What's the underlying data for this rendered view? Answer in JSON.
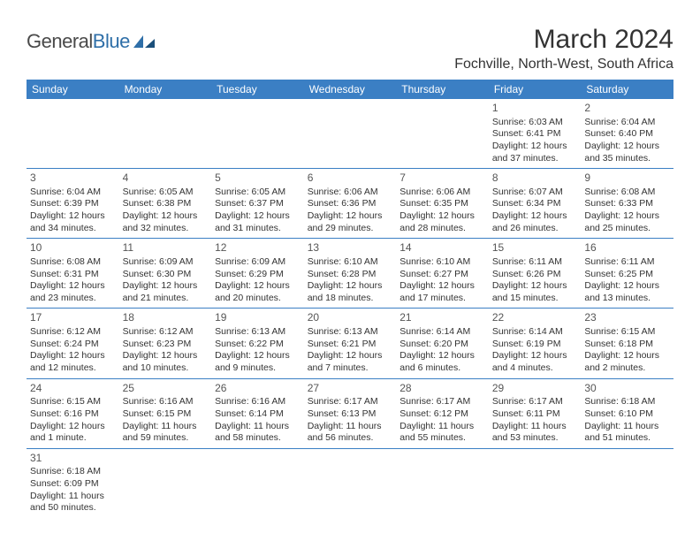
{
  "brand": {
    "part1": "General",
    "part2": "Blue"
  },
  "title": "March 2024",
  "location": "Fochville, North-West, South Africa",
  "colors": {
    "header_bg": "#3b7fc4",
    "header_fg": "#ffffff",
    "rule": "#3b7fc4"
  },
  "weekdays": [
    "Sunday",
    "Monday",
    "Tuesday",
    "Wednesday",
    "Thursday",
    "Friday",
    "Saturday"
  ],
  "weeks": [
    [
      null,
      null,
      null,
      null,
      null,
      {
        "n": "1",
        "sr": "Sunrise: 6:03 AM",
        "ss": "Sunset: 6:41 PM",
        "d1": "Daylight: 12 hours",
        "d2": "and 37 minutes."
      },
      {
        "n": "2",
        "sr": "Sunrise: 6:04 AM",
        "ss": "Sunset: 6:40 PM",
        "d1": "Daylight: 12 hours",
        "d2": "and 35 minutes."
      }
    ],
    [
      {
        "n": "3",
        "sr": "Sunrise: 6:04 AM",
        "ss": "Sunset: 6:39 PM",
        "d1": "Daylight: 12 hours",
        "d2": "and 34 minutes."
      },
      {
        "n": "4",
        "sr": "Sunrise: 6:05 AM",
        "ss": "Sunset: 6:38 PM",
        "d1": "Daylight: 12 hours",
        "d2": "and 32 minutes."
      },
      {
        "n": "5",
        "sr": "Sunrise: 6:05 AM",
        "ss": "Sunset: 6:37 PM",
        "d1": "Daylight: 12 hours",
        "d2": "and 31 minutes."
      },
      {
        "n": "6",
        "sr": "Sunrise: 6:06 AM",
        "ss": "Sunset: 6:36 PM",
        "d1": "Daylight: 12 hours",
        "d2": "and 29 minutes."
      },
      {
        "n": "7",
        "sr": "Sunrise: 6:06 AM",
        "ss": "Sunset: 6:35 PM",
        "d1": "Daylight: 12 hours",
        "d2": "and 28 minutes."
      },
      {
        "n": "8",
        "sr": "Sunrise: 6:07 AM",
        "ss": "Sunset: 6:34 PM",
        "d1": "Daylight: 12 hours",
        "d2": "and 26 minutes."
      },
      {
        "n": "9",
        "sr": "Sunrise: 6:08 AM",
        "ss": "Sunset: 6:33 PM",
        "d1": "Daylight: 12 hours",
        "d2": "and 25 minutes."
      }
    ],
    [
      {
        "n": "10",
        "sr": "Sunrise: 6:08 AM",
        "ss": "Sunset: 6:31 PM",
        "d1": "Daylight: 12 hours",
        "d2": "and 23 minutes."
      },
      {
        "n": "11",
        "sr": "Sunrise: 6:09 AM",
        "ss": "Sunset: 6:30 PM",
        "d1": "Daylight: 12 hours",
        "d2": "and 21 minutes."
      },
      {
        "n": "12",
        "sr": "Sunrise: 6:09 AM",
        "ss": "Sunset: 6:29 PM",
        "d1": "Daylight: 12 hours",
        "d2": "and 20 minutes."
      },
      {
        "n": "13",
        "sr": "Sunrise: 6:10 AM",
        "ss": "Sunset: 6:28 PM",
        "d1": "Daylight: 12 hours",
        "d2": "and 18 minutes."
      },
      {
        "n": "14",
        "sr": "Sunrise: 6:10 AM",
        "ss": "Sunset: 6:27 PM",
        "d1": "Daylight: 12 hours",
        "d2": "and 17 minutes."
      },
      {
        "n": "15",
        "sr": "Sunrise: 6:11 AM",
        "ss": "Sunset: 6:26 PM",
        "d1": "Daylight: 12 hours",
        "d2": "and 15 minutes."
      },
      {
        "n": "16",
        "sr": "Sunrise: 6:11 AM",
        "ss": "Sunset: 6:25 PM",
        "d1": "Daylight: 12 hours",
        "d2": "and 13 minutes."
      }
    ],
    [
      {
        "n": "17",
        "sr": "Sunrise: 6:12 AM",
        "ss": "Sunset: 6:24 PM",
        "d1": "Daylight: 12 hours",
        "d2": "and 12 minutes."
      },
      {
        "n": "18",
        "sr": "Sunrise: 6:12 AM",
        "ss": "Sunset: 6:23 PM",
        "d1": "Daylight: 12 hours",
        "d2": "and 10 minutes."
      },
      {
        "n": "19",
        "sr": "Sunrise: 6:13 AM",
        "ss": "Sunset: 6:22 PM",
        "d1": "Daylight: 12 hours",
        "d2": "and 9 minutes."
      },
      {
        "n": "20",
        "sr": "Sunrise: 6:13 AM",
        "ss": "Sunset: 6:21 PM",
        "d1": "Daylight: 12 hours",
        "d2": "and 7 minutes."
      },
      {
        "n": "21",
        "sr": "Sunrise: 6:14 AM",
        "ss": "Sunset: 6:20 PM",
        "d1": "Daylight: 12 hours",
        "d2": "and 6 minutes."
      },
      {
        "n": "22",
        "sr": "Sunrise: 6:14 AM",
        "ss": "Sunset: 6:19 PM",
        "d1": "Daylight: 12 hours",
        "d2": "and 4 minutes."
      },
      {
        "n": "23",
        "sr": "Sunrise: 6:15 AM",
        "ss": "Sunset: 6:18 PM",
        "d1": "Daylight: 12 hours",
        "d2": "and 2 minutes."
      }
    ],
    [
      {
        "n": "24",
        "sr": "Sunrise: 6:15 AM",
        "ss": "Sunset: 6:16 PM",
        "d1": "Daylight: 12 hours",
        "d2": "and 1 minute."
      },
      {
        "n": "25",
        "sr": "Sunrise: 6:16 AM",
        "ss": "Sunset: 6:15 PM",
        "d1": "Daylight: 11 hours",
        "d2": "and 59 minutes."
      },
      {
        "n": "26",
        "sr": "Sunrise: 6:16 AM",
        "ss": "Sunset: 6:14 PM",
        "d1": "Daylight: 11 hours",
        "d2": "and 58 minutes."
      },
      {
        "n": "27",
        "sr": "Sunrise: 6:17 AM",
        "ss": "Sunset: 6:13 PM",
        "d1": "Daylight: 11 hours",
        "d2": "and 56 minutes."
      },
      {
        "n": "28",
        "sr": "Sunrise: 6:17 AM",
        "ss": "Sunset: 6:12 PM",
        "d1": "Daylight: 11 hours",
        "d2": "and 55 minutes."
      },
      {
        "n": "29",
        "sr": "Sunrise: 6:17 AM",
        "ss": "Sunset: 6:11 PM",
        "d1": "Daylight: 11 hours",
        "d2": "and 53 minutes."
      },
      {
        "n": "30",
        "sr": "Sunrise: 6:18 AM",
        "ss": "Sunset: 6:10 PM",
        "d1": "Daylight: 11 hours",
        "d2": "and 51 minutes."
      }
    ],
    [
      {
        "n": "31",
        "sr": "Sunrise: 6:18 AM",
        "ss": "Sunset: 6:09 PM",
        "d1": "Daylight: 11 hours",
        "d2": "and 50 minutes."
      },
      null,
      null,
      null,
      null,
      null,
      null
    ]
  ]
}
